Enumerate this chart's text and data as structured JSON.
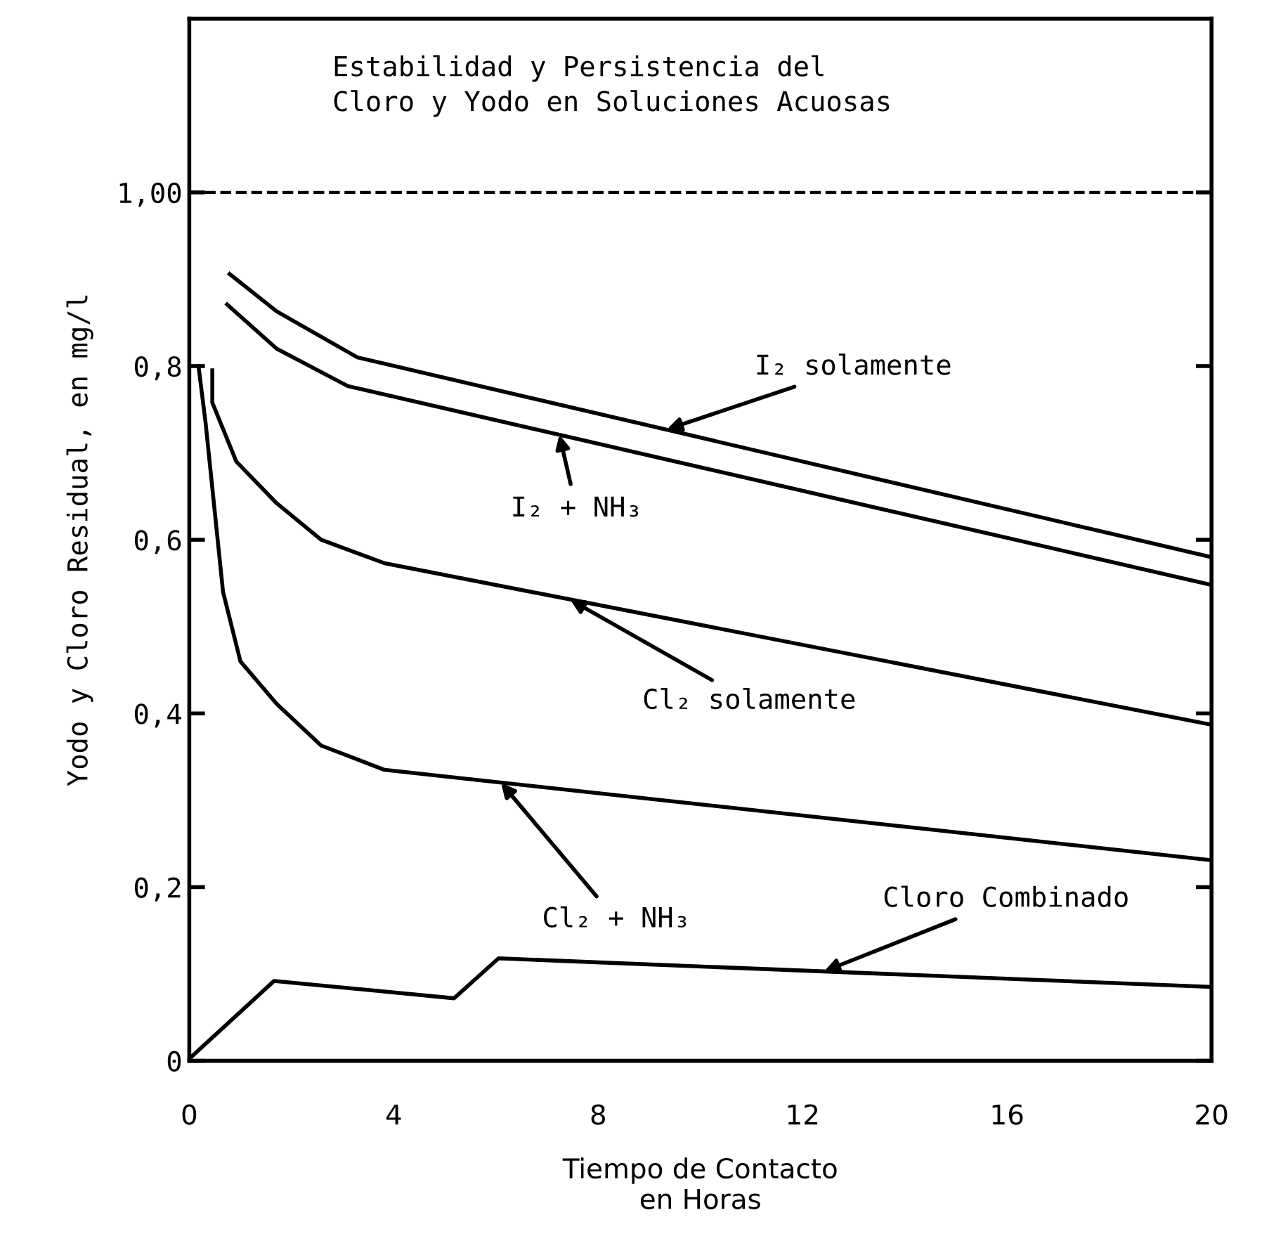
{
  "chart_data": {
    "type": "line",
    "title": "Estabilidad y Persistencia del\nCloro y Yodo en Soluciones Acuosas",
    "xlabel": "Tiempo de Contacto\nen Horas",
    "ylabel": "Yodo y Cloro Residual, en mg/l",
    "xlim": [
      0,
      20
    ],
    "xticks": [
      0,
      4,
      8,
      12,
      16,
      20
    ],
    "ylim": [
      0,
      1.2
    ],
    "yticks": [
      {
        "value": 0,
        "label": "0"
      },
      {
        "value": 0.2,
        "label": "0,2"
      },
      {
        "value": 0.4,
        "label": "0,4"
      },
      {
        "value": 0.6,
        "label": "0,6"
      },
      {
        "value": 0.8,
        "label": "0,8"
      },
      {
        "value": 1.0,
        "label": "1,00"
      }
    ],
    "ref_lines": [
      {
        "axis": "y",
        "value": 1.0,
        "color": "#000000",
        "line_style": "dashed"
      }
    ],
    "grid": false,
    "marker": "none",
    "line_style": "solid",
    "series": [
      {
        "color": "#000000",
        "x": [
          0.79,
          1.71,
          3.29,
          20
        ],
        "values": [
          0.906,
          0.863,
          0.81,
          0.58
        ]
      },
      {
        "color": "#000000",
        "x": [
          0.74,
          1.71,
          3.1,
          20
        ],
        "values": [
          0.871,
          0.82,
          0.777,
          0.548
        ]
      },
      {
        "color": "#000000",
        "x": [
          0.45,
          0.45,
          0.92,
          1.71,
          2.58,
          3.82,
          20
        ],
        "values": [
          0.795,
          0.758,
          0.69,
          0.642,
          0.6,
          0.573,
          0.387
        ]
      },
      {
        "color": "#000000",
        "x": [
          0.18,
          0.32,
          0.66,
          1.0,
          1.71,
          2.58,
          3.82,
          20
        ],
        "values": [
          0.8,
          0.734,
          0.54,
          0.46,
          0.411,
          0.363,
          0.335,
          0.231
        ]
      },
      {
        "color": "#000000",
        "x": [
          0.05,
          1.66,
          5.18,
          6.05,
          20
        ],
        "values": [
          0.005,
          0.092,
          0.072,
          0.118,
          0.085
        ]
      }
    ],
    "annotations": [
      {
        "text": "I₂ solamente",
        "x": 9.34,
        "y": 0.727
      },
      {
        "text": "I₂ + NH₃",
        "x": 7.24,
        "y": 0.721
      },
      {
        "text": "Cl₂ solamente",
        "x": 7.45,
        "y": 0.531
      },
      {
        "text": "Cl₂ + NH₃",
        "x": 6.1,
        "y": 0.32
      },
      {
        "text": "Cloro Combinado",
        "x": 12.42,
        "y": 0.103
      }
    ]
  }
}
